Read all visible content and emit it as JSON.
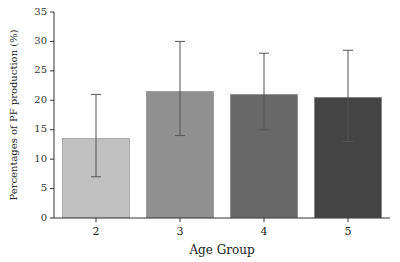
{
  "chart_data": {
    "type": "bar",
    "categories": [
      "2",
      "3",
      "4",
      "5"
    ],
    "values": [
      13.5,
      21.5,
      21.0,
      20.5
    ],
    "error_lower": [
      6.5,
      7.5,
      6.0,
      7.5
    ],
    "error_upper": [
      7.5,
      8.5,
      7.0,
      8.0
    ],
    "colors": [
      "#c0c0c0",
      "#909090",
      "#686868",
      "#444444"
    ],
    "xlabel": "Age Group",
    "ylabel": "Percentages of PF production (%)",
    "ylim": [
      0,
      35
    ],
    "yticks": [
      0,
      5,
      10,
      15,
      20,
      25,
      30,
      35
    ],
    "grid": false
  }
}
